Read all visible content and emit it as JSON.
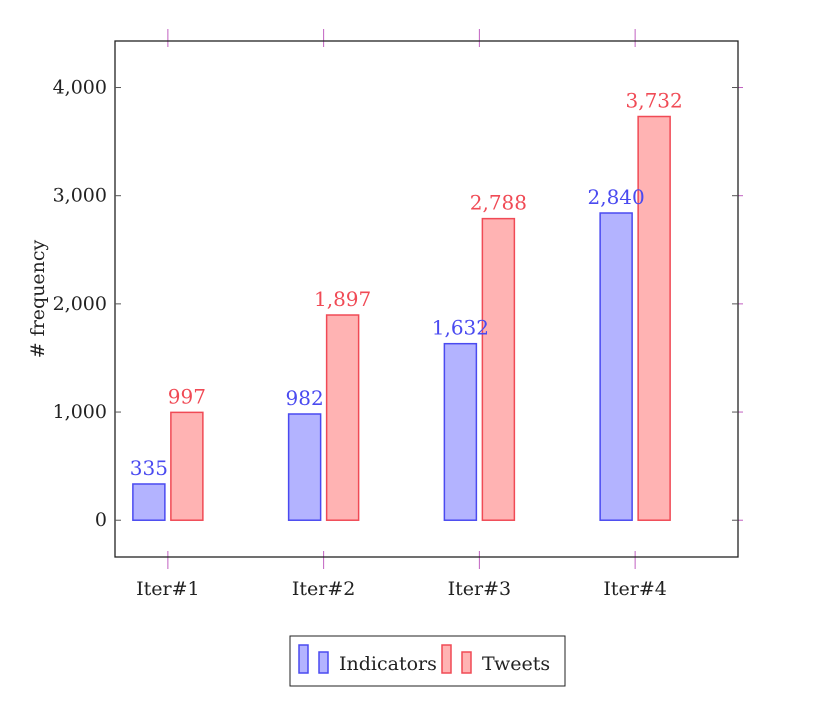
{
  "chart_data": {
    "type": "bar",
    "title": "",
    "xlabel": "",
    "ylabel": "# frequency",
    "categories": [
      "Iter#1",
      "Iter#2",
      "Iter#3",
      "Iter#4"
    ],
    "series": [
      {
        "name": "Indicators",
        "values": [
          335,
          982,
          1632,
          2840
        ],
        "value_labels": [
          "335",
          "982",
          "1,632",
          "2,840"
        ],
        "color": "#b3b3ff",
        "stroke": "#4a4af0",
        "label_color": "#4a4af0"
      },
      {
        "name": "Tweets",
        "values": [
          997,
          1897,
          2788,
          3732
        ],
        "value_labels": [
          "997",
          "1,897",
          "2,788",
          "3,732"
        ],
        "color": "#ffb3b3",
        "stroke": "#f04a55",
        "label_color": "#f04a55"
      }
    ],
    "ylim": [
      -340,
      4430
    ],
    "y_ticks": [
      0,
      1000,
      2000,
      3000,
      4000
    ],
    "y_tick_labels": [
      "0",
      "1,000",
      "2,000",
      "3,000",
      "4,000"
    ],
    "grid": false,
    "legend_position": "bottom-center",
    "tick_mark_color": "#c060c0"
  }
}
